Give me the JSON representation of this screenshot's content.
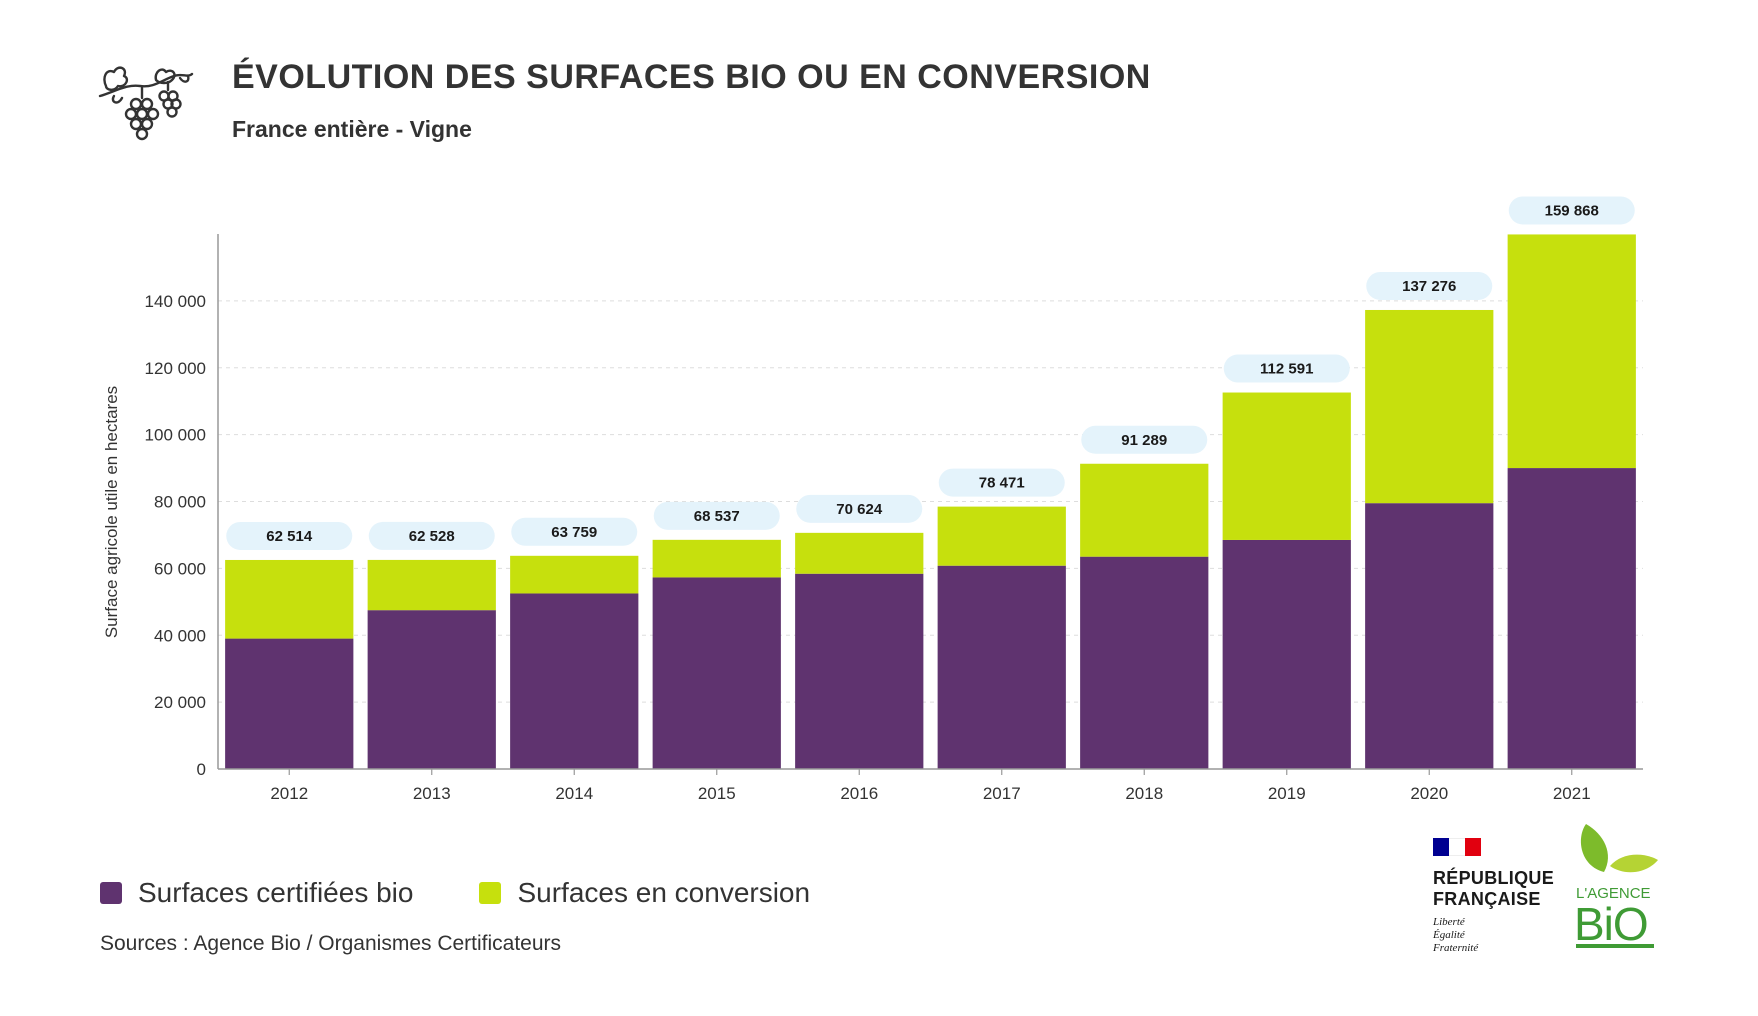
{
  "header": {
    "title": "ÉVOLUTION DES SURFACES BIO OU EN CONVERSION",
    "subtitle": "France entière - Vigne",
    "icon": "grapevine-icon"
  },
  "colors": {
    "certified": "#5f336f",
    "conversion": "#c6e00d",
    "pill": "#e4f3fb",
    "axis": "#999999",
    "grid": "#dddddd"
  },
  "chart_data": {
    "type": "bar",
    "stacked": true,
    "categories": [
      "2012",
      "2013",
      "2014",
      "2015",
      "2016",
      "2017",
      "2018",
      "2019",
      "2020",
      "2021"
    ],
    "series": [
      {
        "name": "Surfaces certifiées bio",
        "values": [
          39000,
          47500,
          52500,
          57300,
          58400,
          60800,
          63500,
          68500,
          79500,
          90000
        ]
      },
      {
        "name": "Surfaces en conversion",
        "values": [
          23514,
          15028,
          11259,
          11237,
          12224,
          17671,
          27789,
          44091,
          57776,
          69868
        ]
      }
    ],
    "totals": [
      62514,
      62528,
      63759,
      68537,
      70624,
      78471,
      91289,
      112591,
      137276,
      159868
    ],
    "total_labels": [
      "62 514",
      "62 528",
      "63 759",
      "68 537",
      "70 624",
      "78 471",
      "91 289",
      "112 591",
      "137 276",
      "159 868"
    ],
    "ylabel": "Surface agricole utile en hectares",
    "xlabel": "",
    "ylim": [
      0,
      160000
    ],
    "yticks": [
      0,
      20000,
      40000,
      60000,
      80000,
      100000,
      120000,
      140000
    ],
    "ytick_labels": [
      "0",
      "20 000",
      "40 000",
      "60 000",
      "80 000",
      "100 000",
      "120 000",
      "140 000"
    ],
    "grid": true,
    "legend_position": "bottom-left"
  },
  "legend": {
    "items": [
      {
        "label": "Surfaces certifiées bio"
      },
      {
        "label": "Surfaces en conversion"
      }
    ]
  },
  "footer": {
    "sources": "Sources : Agence Bio / Organismes Certificateurs",
    "republique": "RÉPUBLIQUE FRANÇAISE",
    "republique_line1": "RÉPUBLIQUE",
    "republique_line2": "FRANÇAISE",
    "motto": [
      "Liberté",
      "Égalité",
      "Fraternité"
    ],
    "agence_logo": "L'AGENCE BiO"
  }
}
